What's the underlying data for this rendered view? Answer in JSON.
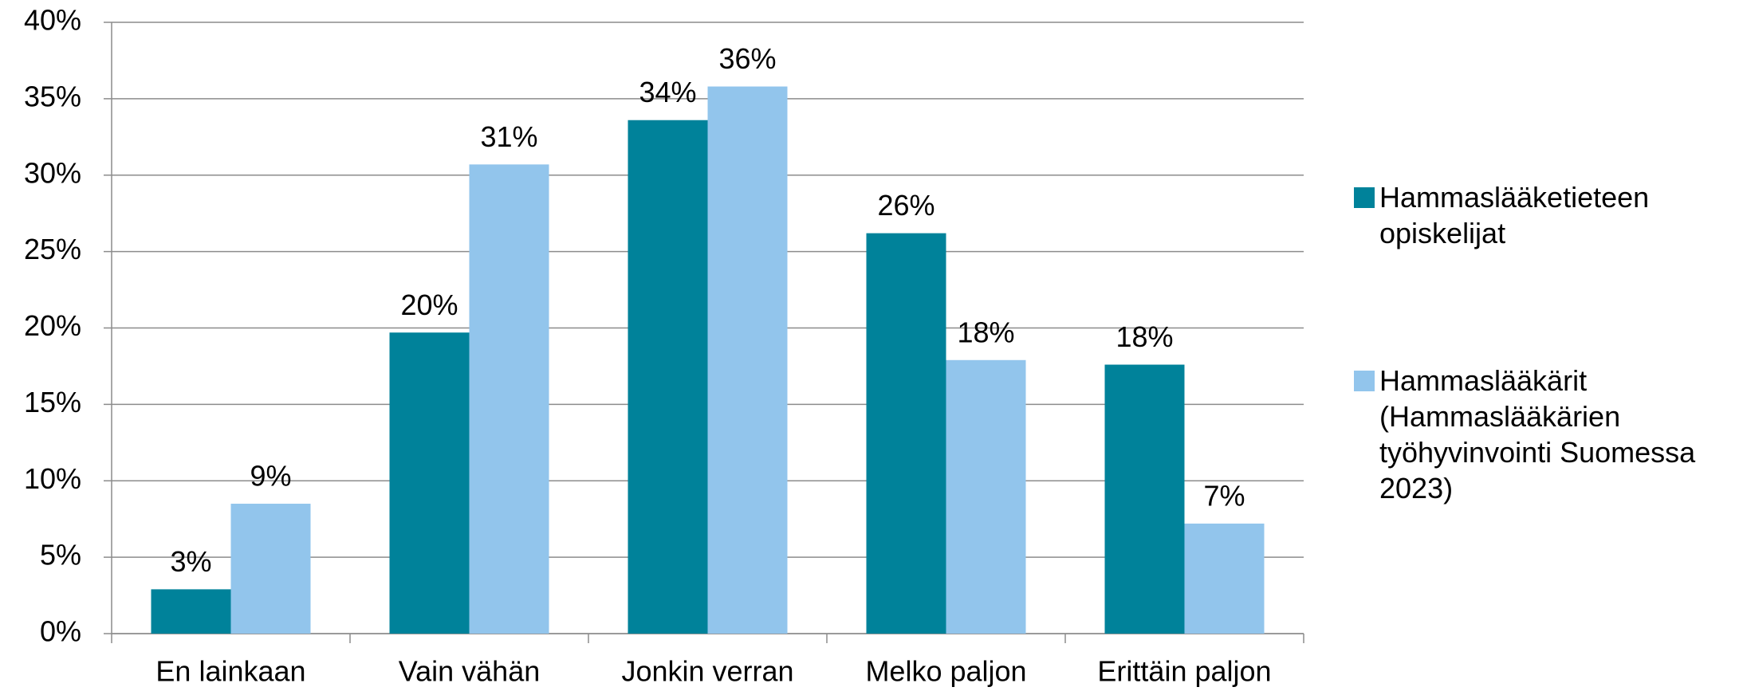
{
  "chart_data": {
    "type": "bar",
    "categories": [
      "En lainkaan",
      "Vain vähän",
      "Jonkin verran",
      "Melko paljon",
      "Erittäin paljon"
    ],
    "series": [
      {
        "name": "Hammaslääketieteen opiskelijat",
        "color": "#00829a",
        "values": [
          2.9,
          19.7,
          33.6,
          26.2,
          17.6
        ],
        "value_labels": [
          "3%",
          "20%",
          "34%",
          "26%",
          "18%"
        ]
      },
      {
        "name": "Hammaslääkärit (Hammaslääkärien työhyvinvointi Suomessa 2023)",
        "color": "#92c5ec",
        "values": [
          8.5,
          30.7,
          35.8,
          17.9,
          7.2
        ],
        "value_labels": [
          "9%",
          "31%",
          "36%",
          "18%",
          "7%"
        ]
      }
    ],
    "ylim": [
      0,
      40
    ],
    "yticks": [
      {
        "value": 0,
        "label": "0%"
      },
      {
        "value": 5,
        "label": "5%"
      },
      {
        "value": 10,
        "label": "10%"
      },
      {
        "value": 15,
        "label": "15%"
      },
      {
        "value": 20,
        "label": "20%"
      },
      {
        "value": 25,
        "label": "25%"
      },
      {
        "value": 30,
        "label": "30%"
      },
      {
        "value": 35,
        "label": "35%"
      },
      {
        "value": 40,
        "label": "40%"
      }
    ],
    "grid": true,
    "legend": "right"
  }
}
